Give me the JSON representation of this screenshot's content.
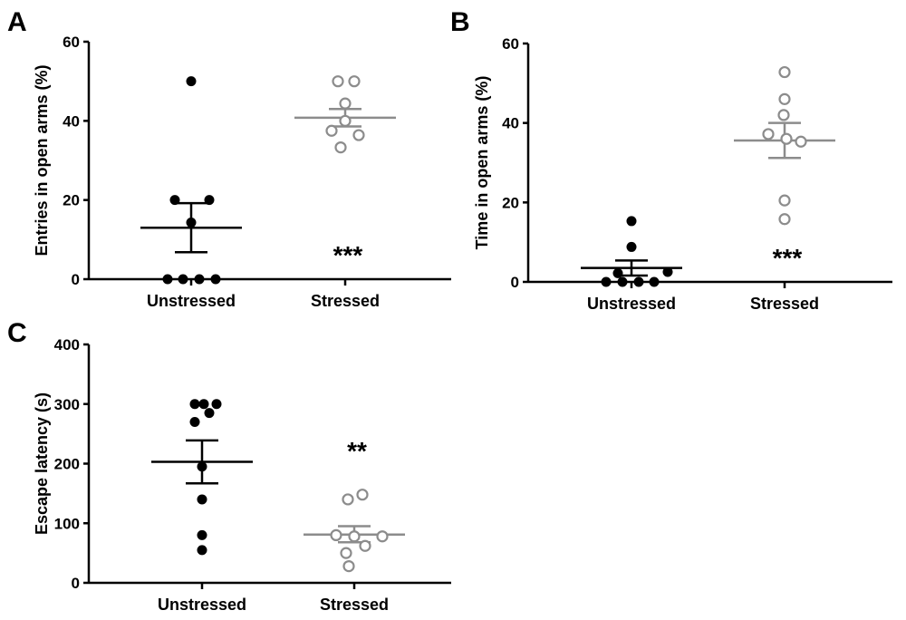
{
  "chart_data": [
    {
      "panel": "A",
      "type": "scatter",
      "ylabel": "Entries in open arms (%)",
      "ylim": [
        0,
        60
      ],
      "yticks": [
        "0",
        "20",
        "40",
        "60"
      ],
      "categories": [
        "Unstressed",
        "Stressed"
      ],
      "series": [
        {
          "category": "Unstressed",
          "color": "#000000",
          "filled": true,
          "values": [
            50,
            20,
            20,
            14.3,
            0,
            0,
            0,
            0
          ],
          "mean": 13.0,
          "sem_low": 6.8,
          "sem_high": 19.2
        },
        {
          "category": "Stressed",
          "color": "#8c8c8c",
          "filled": false,
          "values": [
            50,
            50,
            44.4,
            40,
            37.5,
            36.4,
            33.3
          ],
          "mean": 40.8,
          "sem_low": 38.6,
          "sem_high": 43.0
        }
      ],
      "annotation": "***"
    },
    {
      "panel": "B",
      "type": "scatter",
      "ylabel": "Time in open arms (%)",
      "ylim": [
        0,
        60
      ],
      "yticks": [
        "0",
        "20",
        "40",
        "60"
      ],
      "categories": [
        "Unstressed",
        "Stressed"
      ],
      "series": [
        {
          "category": "Unstressed",
          "color": "#000000",
          "filled": true,
          "values": [
            15.3,
            8.8,
            2.5,
            2.2,
            0,
            0,
            0,
            0
          ],
          "mean": 3.5,
          "sem_low": 1.6,
          "sem_high": 5.4
        },
        {
          "category": "Stressed",
          "color": "#8c8c8c",
          "filled": false,
          "values": [
            52.8,
            46,
            42,
            37.2,
            36,
            35.3,
            20.5,
            15.8
          ],
          "mean": 35.6,
          "sem_low": 31.2,
          "sem_high": 40.0
        }
      ],
      "annotation": "***"
    },
    {
      "panel": "C",
      "type": "scatter",
      "ylabel": "Escape latency (s)",
      "ylim": [
        0,
        400
      ],
      "yticks": [
        "0",
        "100",
        "200",
        "300",
        "400"
      ],
      "categories": [
        "Unstressed",
        "Stressed"
      ],
      "series": [
        {
          "category": "Unstressed",
          "color": "#000000",
          "filled": true,
          "values": [
            300,
            300,
            300,
            285,
            270,
            195,
            140,
            80,
            55
          ],
          "mean": 203,
          "sem_low": 167,
          "sem_high": 239
        },
        {
          "category": "Stressed",
          "color": "#8c8c8c",
          "filled": false,
          "values": [
            148,
            140,
            80,
            78,
            78,
            62,
            50,
            28
          ],
          "mean": 81,
          "sem_low": 68,
          "sem_high": 95
        }
      ],
      "annotation": "**"
    }
  ]
}
